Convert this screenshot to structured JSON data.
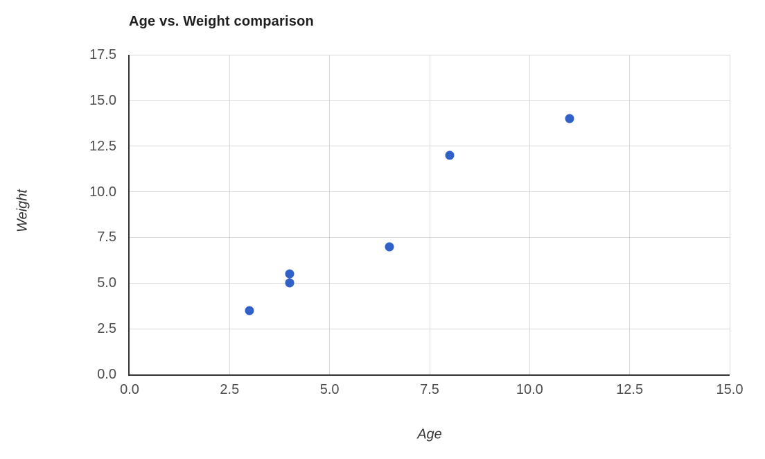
{
  "figure": {
    "background": "#ffffff"
  },
  "chart_data": {
    "type": "scatter",
    "title": "Age vs. Weight comparison",
    "xlabel": "Age",
    "ylabel": "Weight",
    "points": [
      {
        "x": 3,
        "y": 3.5
      },
      {
        "x": 4,
        "y": 5
      },
      {
        "x": 4,
        "y": 5.5
      },
      {
        "x": 6.5,
        "y": 7
      },
      {
        "x": 8,
        "y": 12
      },
      {
        "x": 11,
        "y": 14
      }
    ],
    "xlim": [
      0,
      15
    ],
    "ylim": [
      0,
      17.5
    ],
    "x_ticks": [
      "0.0",
      "2.5",
      "5.0",
      "7.5",
      "10.0",
      "12.5",
      "15.0"
    ],
    "y_ticks": [
      "0.0",
      "2.5",
      "5.0",
      "7.5",
      "10.0",
      "12.5",
      "15.0",
      "17.5"
    ],
    "grid": true,
    "legend": false,
    "colors": {
      "point": "#3161C6",
      "grid": "#d9d9d9",
      "axis": "#333333",
      "tick_label": "#4d4d4d",
      "title": "#1f1f1f",
      "axis_label": "#333333"
    }
  }
}
